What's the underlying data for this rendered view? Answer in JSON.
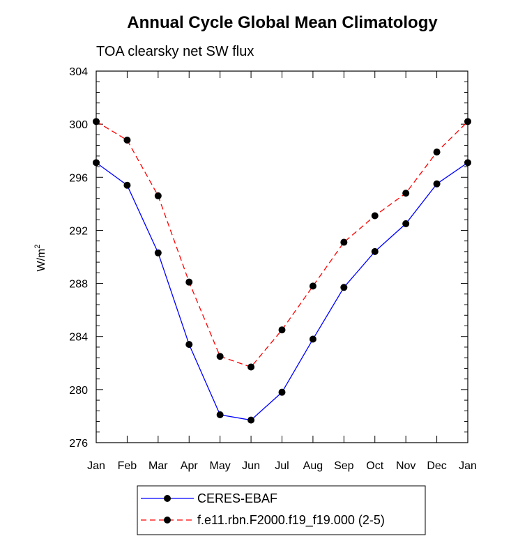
{
  "chart_data": {
    "type": "line",
    "title": "Annual Cycle Global Mean Climatology",
    "subtitle": "TOA clearsky net SW flux",
    "ylabel": "W/m",
    "ylabel_sup": "2",
    "xlabel": "",
    "categories": [
      "Jan",
      "Feb",
      "Mar",
      "Apr",
      "May",
      "Jun",
      "Jul",
      "Aug",
      "Sep",
      "Oct",
      "Nov",
      "Dec",
      "Jan"
    ],
    "ylim": [
      276,
      304
    ],
    "yticks": [
      276,
      280,
      284,
      288,
      292,
      296,
      300,
      304
    ],
    "grid": false,
    "legend_position": "bottom-center",
    "series": [
      {
        "name": "CERES-EBAF",
        "color": "#0000ff",
        "dash": "solid",
        "marker": "filled-circle",
        "values": [
          297.1,
          295.4,
          290.3,
          283.4,
          278.1,
          277.7,
          279.8,
          283.8,
          287.7,
          290.4,
          292.5,
          295.5,
          297.1
        ]
      },
      {
        "name": "f.e11.rbn.F2000.f19_f19.000 (2-5)",
        "color": "#ff0000",
        "dash": "dashed",
        "marker": "filled-circle",
        "values": [
          300.2,
          298.8,
          294.6,
          288.1,
          282.5,
          281.7,
          284.5,
          287.8,
          291.1,
          293.1,
          294.8,
          297.9,
          300.2
        ]
      }
    ]
  }
}
